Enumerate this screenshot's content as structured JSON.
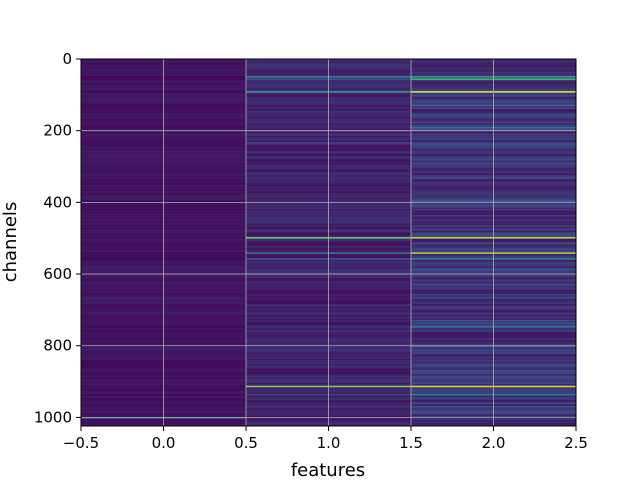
{
  "chart_data": {
    "type": "heatmap",
    "title": "",
    "xlabel": "features",
    "ylabel": "channels",
    "xlim": [
      -0.5,
      2.5
    ],
    "ylim": [
      1024,
      0
    ],
    "x_ticks": [
      -0.5,
      0.0,
      0.5,
      1.0,
      1.5,
      2.0,
      2.5
    ],
    "x_tick_labels": [
      "−0.5",
      "0.0",
      "0.5",
      "1.0",
      "1.5",
      "2.0",
      "2.5"
    ],
    "y_ticks": [
      0,
      200,
      400,
      600,
      800,
      1000
    ],
    "y_tick_labels": [
      "0",
      "200",
      "400",
      "600",
      "800",
      "1000"
    ],
    "grid": true,
    "colormap": "viridis",
    "columns": [
      0,
      1,
      2
    ],
    "rows": 1024,
    "column_base_level": [
      0.03,
      0.04,
      0.06
    ],
    "notable_rows": [
      {
        "channel": 48,
        "values": [
          0.02,
          0.45,
          0.55
        ]
      },
      {
        "channel": 55,
        "values": [
          0.02,
          0.25,
          0.65
        ]
      },
      {
        "channel": 90,
        "values": [
          0.03,
          0.55,
          0.95
        ]
      },
      {
        "channel": 128,
        "values": [
          0.02,
          0.1,
          0.35
        ]
      },
      {
        "channel": 190,
        "values": [
          0.02,
          0.12,
          0.4
        ]
      },
      {
        "channel": 232,
        "values": [
          0.03,
          0.2,
          0.2
        ]
      },
      {
        "channel": 395,
        "values": [
          0.03,
          0.1,
          0.3
        ]
      },
      {
        "channel": 497,
        "values": [
          0.03,
          0.75,
          0.9
        ]
      },
      {
        "channel": 540,
        "values": [
          0.02,
          0.4,
          0.85
        ]
      },
      {
        "channel": 556,
        "values": [
          0.02,
          0.25,
          0.45
        ]
      },
      {
        "channel": 745,
        "values": [
          0.02,
          0.15,
          0.4
        ]
      },
      {
        "channel": 800,
        "values": [
          0.03,
          0.1,
          0.35
        ]
      },
      {
        "channel": 912,
        "values": [
          0.03,
          0.8,
          0.9
        ]
      },
      {
        "channel": 935,
        "values": [
          0.02,
          0.2,
          0.45
        ]
      },
      {
        "channel": 1000,
        "values": [
          0.3,
          0.1,
          0.1
        ]
      }
    ]
  }
}
